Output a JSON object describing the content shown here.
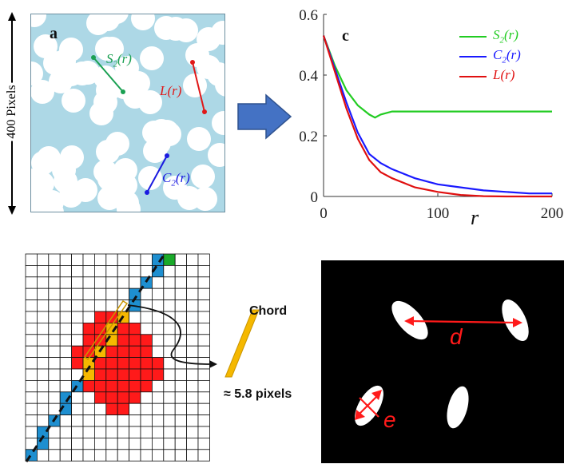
{
  "panel_a": {
    "label": "a",
    "size_label": "400 Pixels",
    "s2_label": "S",
    "s2_sub": "2",
    "s2_arg": "(r)",
    "l_label": "L(r)",
    "c2_label": "C",
    "c2_sub": "2",
    "c2_arg": "(r)",
    "colors": {
      "matrix": "#add8e6",
      "particle": "#ffffff",
      "s2": "#1aa052",
      "l": "#e01818",
      "c2": "#1a1ae0"
    }
  },
  "arrow": {
    "color": "#4472c4"
  },
  "panel_c": {
    "label": "c",
    "xlabel": "r",
    "legend": [
      {
        "label": "S",
        "sub": "2",
        "arg": "(r)",
        "color": "#22cc22"
      },
      {
        "label": "C",
        "sub": "2",
        "arg": "(r)",
        "color": "#1a1aff"
      },
      {
        "label": "L(r)",
        "sub": "",
        "arg": "",
        "color": "#e01010"
      }
    ]
  },
  "chart_data": {
    "type": "line",
    "title": "",
    "xlabel": "r",
    "ylabel": "",
    "xlim": [
      0,
      200
    ],
    "ylim": [
      0,
      0.6
    ],
    "xticks": [
      "0",
      "100",
      "200"
    ],
    "yticks": [
      "0",
      "0.2",
      "0.4",
      "0.6"
    ],
    "legend_position": "top-right",
    "series": [
      {
        "name": "S2(r)",
        "color": "#22cc22",
        "x": [
          0,
          10,
          20,
          30,
          40,
          45,
          50,
          60,
          70,
          80,
          100,
          120,
          140,
          160,
          180,
          200
        ],
        "y": [
          0.53,
          0.43,
          0.35,
          0.3,
          0.27,
          0.26,
          0.27,
          0.28,
          0.28,
          0.28,
          0.28,
          0.28,
          0.28,
          0.28,
          0.28,
          0.28
        ]
      },
      {
        "name": "C2(r)",
        "color": "#1a1aff",
        "x": [
          0,
          10,
          20,
          30,
          40,
          50,
          60,
          80,
          100,
          120,
          140,
          160,
          180,
          200
        ],
        "y": [
          0.53,
          0.42,
          0.31,
          0.21,
          0.14,
          0.11,
          0.09,
          0.06,
          0.04,
          0.03,
          0.02,
          0.015,
          0.01,
          0.01
        ]
      },
      {
        "name": "L(r)",
        "color": "#e01010",
        "x": [
          0,
          10,
          20,
          30,
          40,
          50,
          60,
          80,
          100,
          120,
          140,
          160,
          180,
          200
        ],
        "y": [
          0.53,
          0.41,
          0.29,
          0.19,
          0.12,
          0.08,
          0.06,
          0.03,
          0.015,
          0.005,
          0.001,
          0,
          0,
          0
        ]
      }
    ]
  },
  "panel_chord": {
    "chord_label": "Chord",
    "length_label": "≈ 5.8 pixels",
    "colors": {
      "pore": "#ff1a1a",
      "line": "#1e8fd0",
      "chord_fill": "#f5b800",
      "start": "#1aaa2a"
    }
  },
  "panel_d": {
    "d_label": "d",
    "e_label": "e",
    "colors": {
      "background": "#000000",
      "ellipse": "#ffffff",
      "measure": "#ff1a1a"
    }
  }
}
